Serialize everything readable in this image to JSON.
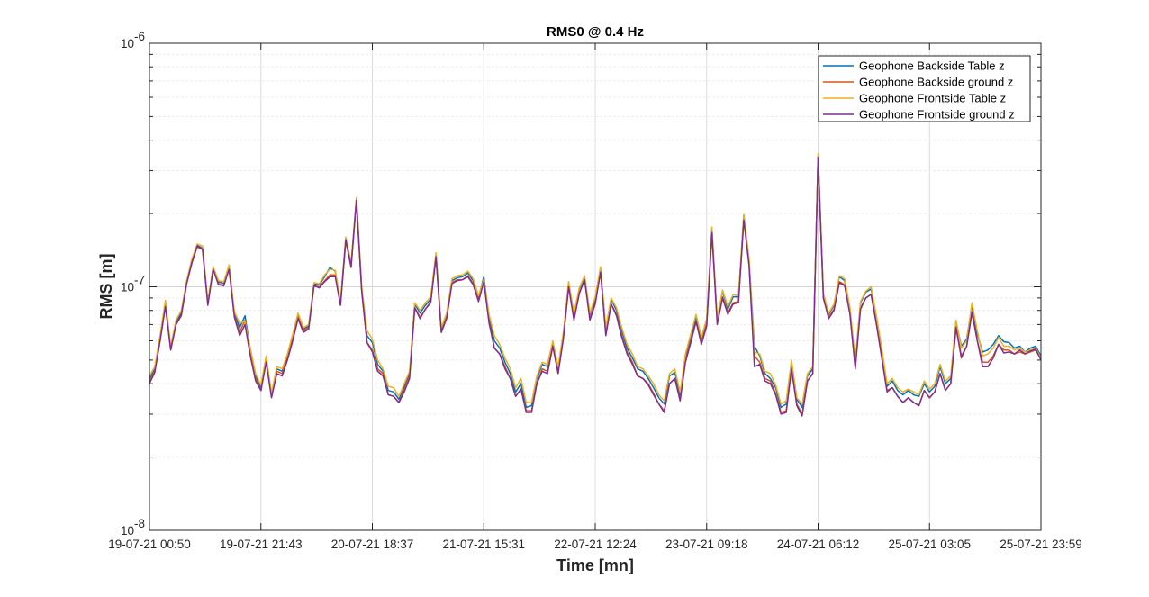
{
  "chart_data": {
    "type": "line",
    "title": "RMS0 @ 0.4 Hz",
    "xlabel": "Time [mn]",
    "ylabel": "RMS [m]",
    "yscale": "log",
    "ylim": [
      1e-08,
      1e-06
    ],
    "y_tick_labels": [
      {
        "value": 1e-08,
        "base": "10",
        "exp": "-8"
      },
      {
        "value": 1e-07,
        "base": "10",
        "exp": "-7"
      },
      {
        "value": 1e-06,
        "base": "10",
        "exp": "-6"
      }
    ],
    "x_tick_labels": [
      "19-07-21 00:50",
      "19-07-21 21:43",
      "20-07-21 18:37",
      "21-07-21 15:31",
      "22-07-21 12:24",
      "23-07-21 09:18",
      "24-07-21 06:12",
      "25-07-21 03:05",
      "25-07-21 23:59"
    ],
    "grid": "on (major and minor)",
    "legend_location": "top-right",
    "series": [
      {
        "name": "Geophone Backside Table z",
        "color": "#0072BD",
        "values": [
          4.2e-08,
          4.6e-08,
          6.2e-08,
          8.7e-08,
          5.6e-08,
          7.2e-08,
          7.8e-08,
          1.05e-07,
          1.28e-07,
          1.48e-07,
          1.44e-07,
          8.6e-08,
          1.2e-07,
          1.05e-07,
          1.03e-07,
          1.22e-07,
          7.8e-08,
          6.8e-08,
          7.6e-08,
          5.5e-08,
          4.3e-08,
          3.85e-08,
          5.1e-08,
          3.6e-08,
          4.6e-08,
          4.5e-08,
          5.2e-08,
          6.2e-08,
          7.7e-08,
          6.7e-08,
          6.9e-08,
          1.03e-07,
          1.02e-07,
          1.1e-07,
          1.2e-07,
          1.16e-07,
          8.6e-08,
          1.58e-07,
          1.23e-07,
          2.3e-07,
          9.8e-08,
          6.3e-08,
          5.9e-08,
          4.8e-08,
          4.5e-08,
          3.75e-08,
          3.7e-08,
          3.45e-08,
          3.9e-08,
          4.4e-08,
          8.5e-08,
          7.8e-08,
          8.4e-08,
          8.9e-08,
          1.36e-07,
          6.7e-08,
          7.7e-08,
          1.06e-07,
          1.09e-07,
          1.1e-07,
          1.14e-07,
          1.06e-07,
          9e-08,
          1.1e-07,
          7.5e-08,
          6e-08,
          5.6e-08,
          4.9e-08,
          4.4e-08,
          3.7e-08,
          4e-08,
          3.2e-08,
          3.25e-08,
          4.2e-08,
          4.8e-08,
          4.7e-08,
          5.9e-08,
          4.6e-08,
          6.4e-08,
          1.04e-07,
          7.7e-08,
          9.8e-08,
          1.1e-07,
          7.7e-08,
          8.9e-08,
          1.19e-07,
          6.7e-08,
          8.9e-08,
          8e-08,
          6.6e-08,
          5.6e-08,
          5.1e-08,
          4.6e-08,
          4.5e-08,
          4.2e-08,
          3.85e-08,
          3.5e-08,
          3.3e-08,
          4.3e-08,
          4.45e-08,
          3.6e-08,
          5.2e-08,
          6.2e-08,
          7.5e-08,
          6.1e-08,
          7.3e-08,
          1.73e-07,
          7.3e-08,
          9.6e-08,
          8.1e-08,
          9.1e-08,
          9.1e-08,
          1.97e-07,
          1.28e-07,
          5.7e-08,
          5.2e-08,
          4.4e-08,
          4.2e-08,
          3.85e-08,
          3.2e-08,
          3.3e-08,
          4.9e-08,
          3.45e-08,
          3.2e-08,
          4.3e-08,
          4.6e-08,
          3.45e-07,
          9.3e-08,
          7.7e-08,
          8.4e-08,
          1.1e-07,
          1.06e-07,
          8.1e-08,
          4.9e-08,
          8.6e-08,
          9.5e-08,
          9.8e-08,
          7.5e-08,
          5.5e-08,
          3.9e-08,
          4.1e-08,
          3.75e-08,
          3.6e-08,
          3.75e-08,
          3.6e-08,
          3.55e-08,
          4e-08,
          3.7e-08,
          3.9e-08,
          4.7e-08,
          4e-08,
          4.2e-08,
          7.2e-08,
          5.7e-08,
          6.1e-08,
          8.4e-08,
          6.4e-08,
          5.4e-08,
          5.5e-08,
          5.8e-08,
          6.3e-08,
          5.95e-08,
          5.9e-08,
          5.6e-08,
          5.7e-08,
          5.4e-08,
          5.6e-08,
          5.7e-08,
          5.2e-08
        ]
      },
      {
        "name": "Geophone Backside ground z",
        "color": "#D95319",
        "values": [
          4.1e-08,
          4.5e-08,
          6e-08,
          8.4e-08,
          5.5e-08,
          7e-08,
          7.6e-08,
          1.03e-07,
          1.25e-07,
          1.46e-07,
          1.42e-07,
          8.5e-08,
          1.18e-07,
          1.03e-07,
          1.01e-07,
          1.19e-07,
          7.6e-08,
          6.5e-08,
          7.3e-08,
          5.3e-08,
          4.2e-08,
          3.75e-08,
          5e-08,
          3.55e-08,
          4.5e-08,
          4.4e-08,
          5.1e-08,
          6.1e-08,
          7.5e-08,
          6.6e-08,
          6.8e-08,
          1.01e-07,
          1e-07,
          1.06e-07,
          1.12e-07,
          1.12e-07,
          8.4e-08,
          1.55e-07,
          1.2e-07,
          2.25e-07,
          9.6e-08,
          5.9e-08,
          5.5e-08,
          4.6e-08,
          4.4e-08,
          3.6e-08,
          3.55e-08,
          3.35e-08,
          3.8e-08,
          4.3e-08,
          8.2e-08,
          7.5e-08,
          8.1e-08,
          8.7e-08,
          1.32e-07,
          6.5e-08,
          7.5e-08,
          1.04e-07,
          1.07e-07,
          1.07e-07,
          1.11e-07,
          1.03e-07,
          8.8e-08,
          1.06e-07,
          7.2e-08,
          5.6e-08,
          5.3e-08,
          4.7e-08,
          4.2e-08,
          3.55e-08,
          3.8e-08,
          3.1e-08,
          3.1e-08,
          4e-08,
          4.6e-08,
          4.5e-08,
          5.7e-08,
          4.45e-08,
          6.2e-08,
          1.01e-07,
          7.4e-08,
          9.4e-08,
          1.07e-07,
          7.4e-08,
          8.6e-08,
          1.16e-07,
          6.4e-08,
          8.5e-08,
          7.7e-08,
          6.3e-08,
          5.4e-08,
          4.9e-08,
          4.3e-08,
          4.2e-08,
          4e-08,
          3.65e-08,
          3.3e-08,
          3.1e-08,
          4e-08,
          4.2e-08,
          3.45e-08,
          5e-08,
          6e-08,
          7.2e-08,
          5.9e-08,
          7e-08,
          1.68e-07,
          7.1e-08,
          9.1e-08,
          7.8e-08,
          8.6e-08,
          8.7e-08,
          1.9e-07,
          1.23e-07,
          5.2e-08,
          4.9e-08,
          4.2e-08,
          4.1e-08,
          3.65e-08,
          3.05e-08,
          3.1e-08,
          4.6e-08,
          3.3e-08,
          3e-08,
          4.1e-08,
          4.4e-08,
          3.4e-07,
          9e-08,
          7.5e-08,
          8.1e-08,
          1.05e-07,
          1.02e-07,
          7.8e-08,
          4.7e-08,
          8.2e-08,
          9e-08,
          9.3e-08,
          7.1e-08,
          5.2e-08,
          3.75e-08,
          3.85e-08,
          3.55e-08,
          3.35e-08,
          3.5e-08,
          3.35e-08,
          3.25e-08,
          3.75e-08,
          3.5e-08,
          3.7e-08,
          4.4e-08,
          3.75e-08,
          4e-08,
          6.8e-08,
          5.2e-08,
          5.7e-08,
          7.8e-08,
          6e-08,
          4.9e-08,
          4.9e-08,
          5.2e-08,
          5.8e-08,
          5.5e-08,
          5.5e-08,
          5.3e-08,
          5.4e-08,
          5.3e-08,
          5.4e-08,
          5.5e-08,
          5.05e-08
        ]
      },
      {
        "name": "Geophone Frontside Table z",
        "color": "#EDB120",
        "values": [
          4.3e-08,
          4.7e-08,
          6.3e-08,
          8.8e-08,
          5.7e-08,
          7.3e-08,
          8e-08,
          1.06e-07,
          1.3e-07,
          1.5e-07,
          1.47e-07,
          8.7e-08,
          1.21e-07,
          1.06e-07,
          1.05e-07,
          1.23e-07,
          7.9e-08,
          7.1e-08,
          7.2e-08,
          5.6e-08,
          4.4e-08,
          3.95e-08,
          5.2e-08,
          3.65e-08,
          4.7e-08,
          4.6e-08,
          5.3e-08,
          6.4e-08,
          7.8e-08,
          6.8e-08,
          7e-08,
          1.04e-07,
          1.03e-07,
          1.12e-07,
          1.18e-07,
          1.17e-07,
          8.7e-08,
          1.6e-07,
          1.25e-07,
          2.32e-07,
          1e-07,
          6.6e-08,
          6.1e-08,
          5e-08,
          4.6e-08,
          3.9e-08,
          3.85e-08,
          3.55e-08,
          4e-08,
          4.5e-08,
          8.6e-08,
          8e-08,
          8.6e-08,
          9.1e-08,
          1.38e-07,
          6.8e-08,
          7.8e-08,
          1.08e-07,
          1.11e-07,
          1.12e-07,
          1.16e-07,
          1.08e-07,
          9.2e-08,
          1.07e-07,
          7.7e-08,
          6.3e-08,
          5.8e-08,
          5.1e-08,
          4.6e-08,
          3.85e-08,
          4.2e-08,
          3.35e-08,
          3.35e-08,
          4.3e-08,
          4.9e-08,
          4.8e-08,
          6e-08,
          4.7e-08,
          6.5e-08,
          1.05e-07,
          7.8e-08,
          9.9e-08,
          1.11e-07,
          7.8e-08,
          9.1e-08,
          1.21e-07,
          6.8e-08,
          9e-08,
          8.2e-08,
          6.8e-08,
          5.8e-08,
          5.3e-08,
          4.7e-08,
          4.6e-08,
          4.3e-08,
          4e-08,
          3.6e-08,
          3.4e-08,
          4.4e-08,
          4.6e-08,
          3.7e-08,
          5.3e-08,
          6.4e-08,
          7.7e-08,
          6.2e-08,
          7.4e-08,
          1.76e-07,
          7.4e-08,
          9.7e-08,
          8.3e-08,
          9.3e-08,
          9.2e-08,
          1.98e-07,
          1.3e-07,
          5.4e-08,
          5.3e-08,
          4.5e-08,
          4.4e-08,
          3.95e-08,
          3.3e-08,
          3.4e-08,
          5e-08,
          3.5e-08,
          3.3e-08,
          4.4e-08,
          4.7e-08,
          3.5e-07,
          9.4e-08,
          7.8e-08,
          8.5e-08,
          1.11e-07,
          1.08e-07,
          8.2e-08,
          5e-08,
          8.7e-08,
          9.6e-08,
          1e-07,
          7.6e-08,
          5.6e-08,
          4e-08,
          4.2e-08,
          3.85e-08,
          3.7e-08,
          3.8e-08,
          3.7e-08,
          3.6e-08,
          4.1e-08,
          3.8e-08,
          4e-08,
          4.8e-08,
          4.1e-08,
          4.3e-08,
          7.3e-08,
          5.6e-08,
          6e-08,
          8.6e-08,
          6.6e-08,
          5.2e-08,
          5.3e-08,
          5.6e-08,
          6.2e-08,
          5.7e-08,
          5.7e-08,
          5.5e-08,
          5.6e-08,
          5.4e-08,
          5.5e-08,
          5.6e-08,
          5.1e-08
        ]
      },
      {
        "name": "Geophone Frontside ground z",
        "color": "#7E2F8E",
        "values": [
          4e-08,
          4.45e-08,
          6e-08,
          8.3e-08,
          5.5e-08,
          7e-08,
          7.7e-08,
          1.03e-07,
          1.26e-07,
          1.47e-07,
          1.43e-07,
          8.4e-08,
          1.18e-07,
          1.02e-07,
          1.01e-07,
          1.18e-07,
          7.5e-08,
          6.3e-08,
          7e-08,
          5.2e-08,
          4.1e-08,
          3.75e-08,
          4.9e-08,
          3.5e-08,
          4.4e-08,
          4.3e-08,
          5e-08,
          6e-08,
          7.4e-08,
          6.5e-08,
          6.7e-08,
          1.01e-07,
          9.9e-08,
          1.05e-07,
          1.1e-07,
          1.1e-07,
          8.4e-08,
          1.56e-07,
          1.21e-07,
          2.27e-07,
          9.6e-08,
          5.9e-08,
          5.4e-08,
          4.5e-08,
          4.3e-08,
          3.6e-08,
          3.55e-08,
          3.35e-08,
          3.7e-08,
          4.2e-08,
          8.2e-08,
          7.4e-08,
          8.1e-08,
          8.6e-08,
          1.33e-07,
          6.5e-08,
          7.4e-08,
          1.03e-07,
          1.06e-07,
          1.07e-07,
          1.1e-07,
          1.02e-07,
          8.7e-08,
          1.05e-07,
          7.1e-08,
          5.6e-08,
          5.3e-08,
          4.6e-08,
          4.2e-08,
          3.55e-08,
          3.8e-08,
          3.05e-08,
          3.05e-08,
          4e-08,
          4.5e-08,
          4.4e-08,
          5.7e-08,
          4.4e-08,
          6.1e-08,
          1e-07,
          7.3e-08,
          9.4e-08,
          1.07e-07,
          7.3e-08,
          8.5e-08,
          1.15e-07,
          6.3e-08,
          8.5e-08,
          7.6e-08,
          6.2e-08,
          5.3e-08,
          4.8e-08,
          4.3e-08,
          4.2e-08,
          3.95e-08,
          3.6e-08,
          3.3e-08,
          3.05e-08,
          4e-08,
          4.2e-08,
          3.4e-08,
          4.9e-08,
          5.9e-08,
          7.2e-08,
          5.8e-08,
          6.9e-08,
          1.67e-07,
          7e-08,
          9e-08,
          7.7e-08,
          8.5e-08,
          8.6e-08,
          1.88e-07,
          1.22e-07,
          4.7e-08,
          4.8e-08,
          4.1e-08,
          4e-08,
          3.6e-08,
          3e-08,
          3.05e-08,
          4.6e-08,
          3.25e-08,
          2.95e-08,
          4.1e-08,
          4.4e-08,
          3.4e-07,
          9e-08,
          7.4e-08,
          8e-08,
          1.04e-07,
          1.01e-07,
          7.7e-08,
          4.6e-08,
          8.1e-08,
          9e-08,
          9.3e-08,
          7e-08,
          5.1e-08,
          3.7e-08,
          3.85e-08,
          3.55e-08,
          3.35e-08,
          3.5e-08,
          3.35e-08,
          3.25e-08,
          3.75e-08,
          3.5e-08,
          3.7e-08,
          4.4e-08,
          3.75e-08,
          4e-08,
          6.8e-08,
          5.1e-08,
          5.7e-08,
          7.9e-08,
          6e-08,
          4.7e-08,
          4.7e-08,
          5.1e-08,
          5.8e-08,
          5.35e-08,
          5.4e-08,
          5.3e-08,
          5.5e-08,
          5.3e-08,
          5.45e-08,
          5.55e-08,
          5e-08
        ]
      }
    ]
  }
}
